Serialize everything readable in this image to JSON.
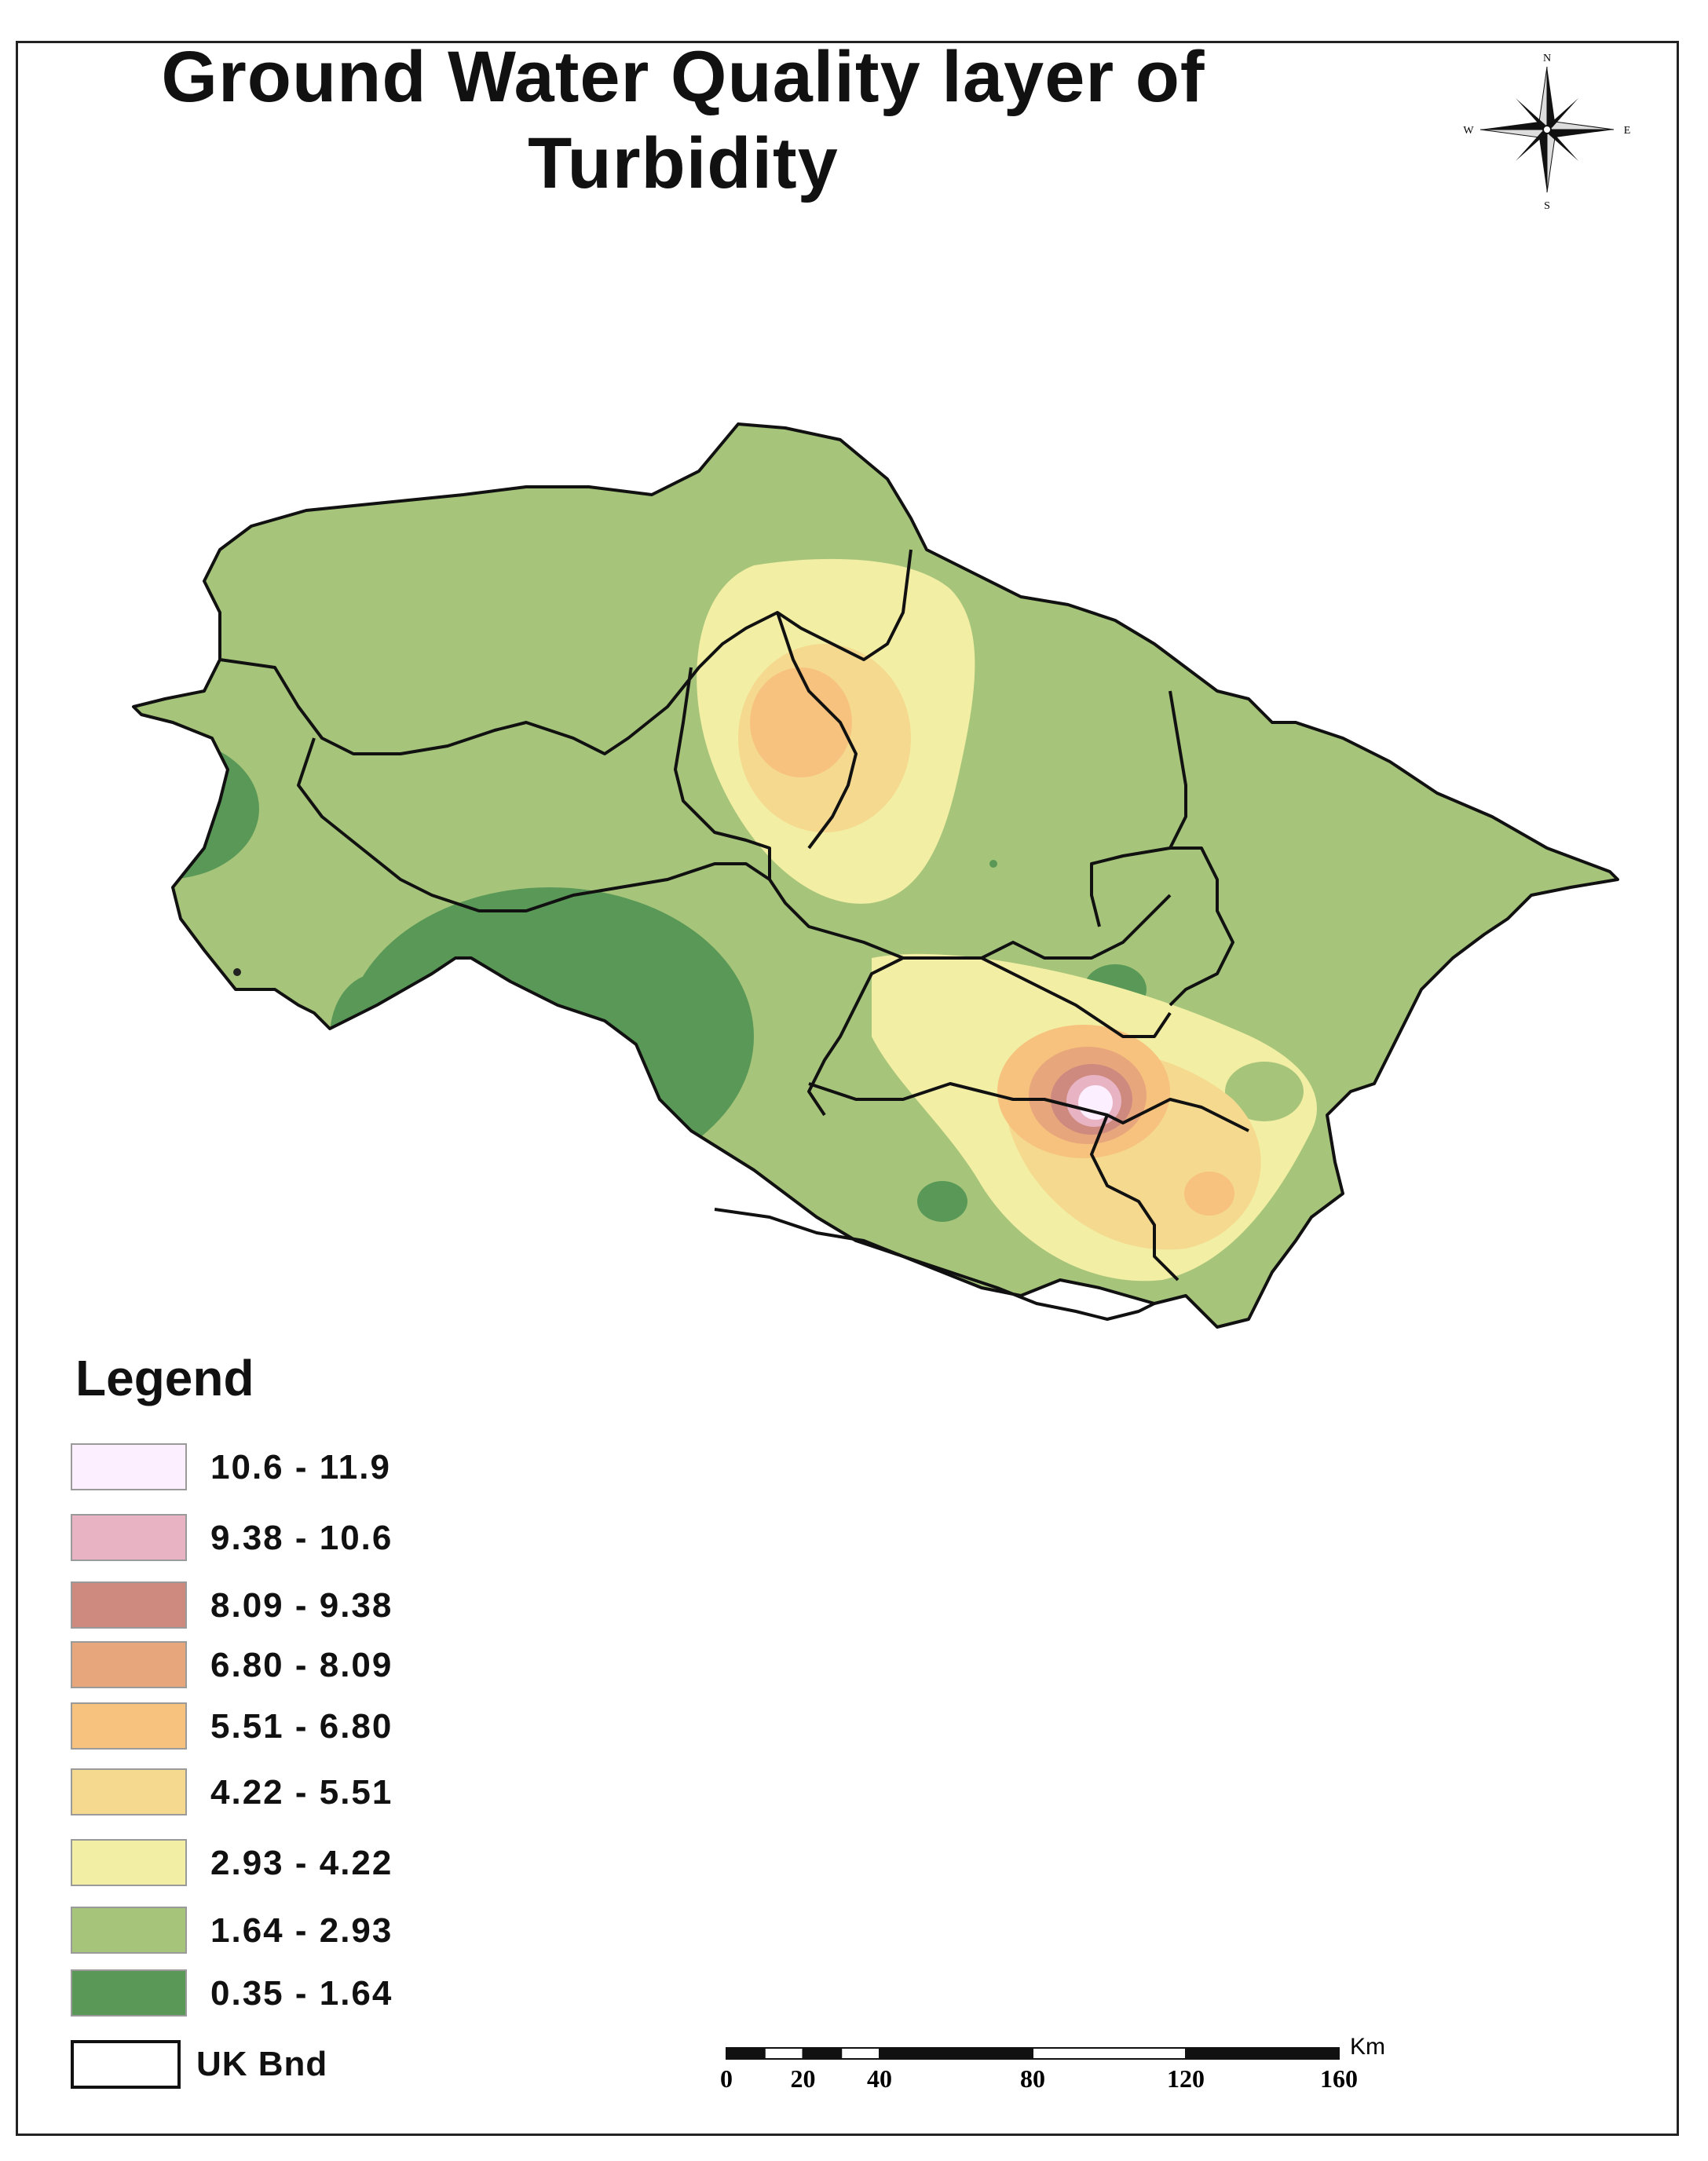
{
  "title": {
    "line1": "Ground Water Quality layer of",
    "line2": "Turbidity"
  },
  "north_arrow": {
    "icon": "compass-rose-icon",
    "n": "N",
    "s": "S",
    "e": "E",
    "w": "W"
  },
  "legend": {
    "title": "Legend",
    "classes": [
      {
        "label": "10.6 - 11.9",
        "color": "#fcefff"
      },
      {
        "label": "9.38 - 10.6",
        "color": "#e8b4c3"
      },
      {
        "label": "8.09 - 9.38",
        "color": "#cf8a80"
      },
      {
        "label": "6.80 - 8.09",
        "color": "#e8a67c"
      },
      {
        "label": "5.51 - 6.80",
        "color": "#f7c27e"
      },
      {
        "label": "4.22 - 5.51",
        "color": "#f4d98f"
      },
      {
        "label": "2.93 - 4.22",
        "color": "#f2eea4"
      },
      {
        "label": "1.64 - 2.93",
        "color": "#a6c57a"
      },
      {
        "label": "0.35 - 1.64",
        "color": "#5a9858"
      }
    ],
    "boundary": {
      "label": "UK Bnd",
      "color": "#ffffff"
    }
  },
  "scalebar": {
    "unit": "Km",
    "ticks": [
      "0",
      "20",
      "40",
      "80",
      "120",
      "160"
    ]
  }
}
